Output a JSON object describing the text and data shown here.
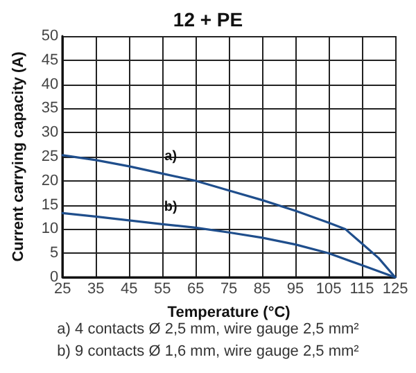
{
  "chart_data": {
    "type": "line",
    "title": "12 + PE",
    "xlabel": "Temperature (°C)",
    "ylabel": "Current carrying capacity (A)",
    "xlim": [
      25,
      125
    ],
    "xticks": [
      25,
      35,
      45,
      55,
      65,
      75,
      85,
      95,
      105,
      115,
      125
    ],
    "ylim": [
      0,
      50
    ],
    "yticks": [
      0,
      5,
      10,
      15,
      20,
      25,
      30,
      35,
      40,
      45,
      50
    ],
    "grid": true,
    "marker": "none",
    "line_style": "solid",
    "series": [
      {
        "name": "a)",
        "color": "#1f4e8c",
        "x": [
          25,
          35,
          45,
          55,
          65,
          75,
          85,
          95,
          105,
          110,
          115,
          120,
          125
        ],
        "values": [
          25.3,
          24.3,
          23,
          21.5,
          20,
          18,
          16,
          13.8,
          11.3,
          10,
          7,
          4,
          0
        ]
      },
      {
        "name": "b)",
        "color": "#1f4e8c",
        "x": [
          25,
          35,
          45,
          55,
          65,
          75,
          85,
          95,
          105,
          115,
          125
        ],
        "values": [
          13.3,
          12.6,
          11.8,
          11,
          10.3,
          9.3,
          8.2,
          6.8,
          5,
          2.5,
          0
        ]
      }
    ],
    "annotations": [
      "a) 4 contacts Ø 2,5 mm, wire gauge 2,5 mm²",
      "b) 9 contacts Ø 1,6 mm, wire gauge 2,5 mm²"
    ]
  }
}
